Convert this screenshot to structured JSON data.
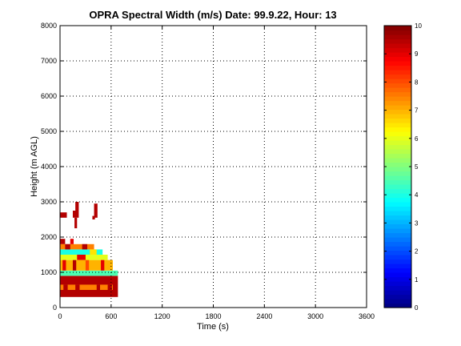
{
  "chart_data": {
    "type": "heatmap",
    "title": "OPRA Spectral Width (m/s)  Date: 99.9.22, Hour: 13",
    "xlabel": "Time (s)",
    "ylabel": "Height (m AGL)",
    "xlim": [
      0,
      3600
    ],
    "ylim": [
      0,
      8000
    ],
    "xticks": [
      0,
      600,
      1200,
      1800,
      2400,
      3000,
      3600
    ],
    "xtick_labels": [
      "0",
      "600",
      "1200",
      "1800",
      "2400",
      "3000",
      "3600"
    ],
    "yticks": [
      0,
      1000,
      2000,
      3000,
      4000,
      5000,
      6000,
      7000,
      8000
    ],
    "ytick_labels": [
      "0",
      "1000",
      "2000",
      "3000",
      "4000",
      "5000",
      "6000",
      "7000",
      "8000"
    ],
    "grid": true,
    "grid_style": "dotted",
    "colorbar": {
      "colormap": "jet",
      "range": [
        0,
        10
      ],
      "ticks": [
        0,
        1,
        2,
        3,
        4,
        5,
        6,
        7,
        8,
        9,
        10
      ],
      "tick_labels": [
        "0",
        "1",
        "2",
        "3",
        "4",
        "5",
        "6",
        "7",
        "8",
        "9",
        "10"
      ],
      "position": "right"
    },
    "cells": [
      {
        "t0": 0,
        "t1": 680,
        "h0": 300,
        "h1": 900,
        "value": 9.5
      },
      {
        "t0": 0,
        "t1": 620,
        "h0": 500,
        "h1": 650,
        "value": 7.5
      },
      {
        "t0": 40,
        "t1": 90,
        "h0": 500,
        "h1": 650,
        "value": 9.5
      },
      {
        "t0": 180,
        "t1": 230,
        "h0": 500,
        "h1": 650,
        "value": 9.5
      },
      {
        "t0": 430,
        "t1": 470,
        "h0": 500,
        "h1": 650,
        "value": 9.5
      },
      {
        "t0": 560,
        "t1": 610,
        "h0": 500,
        "h1": 650,
        "value": 9.5
      },
      {
        "t0": 0,
        "t1": 680,
        "h0": 900,
        "h1": 1050,
        "value": 4.5
      },
      {
        "t0": 0,
        "t1": 620,
        "h0": 1050,
        "h1": 1350,
        "value": 7.0
      },
      {
        "t0": 30,
        "t1": 70,
        "h0": 1050,
        "h1": 1350,
        "value": 9.0
      },
      {
        "t0": 150,
        "t1": 190,
        "h0": 1050,
        "h1": 1350,
        "value": 9.5
      },
      {
        "t0": 300,
        "t1": 340,
        "h0": 1050,
        "h1": 1350,
        "value": 8.0
      },
      {
        "t0": 480,
        "t1": 520,
        "h0": 1050,
        "h1": 1350,
        "value": 9.0
      },
      {
        "t0": 0,
        "t1": 560,
        "h0": 1350,
        "h1": 1500,
        "value": 6.0
      },
      {
        "t0": 200,
        "t1": 300,
        "h0": 1350,
        "h1": 1500,
        "value": 9.0
      },
      {
        "t0": 0,
        "t1": 500,
        "h0": 1500,
        "h1": 1650,
        "value": 4.0
      },
      {
        "t0": 350,
        "t1": 430,
        "h0": 1500,
        "h1": 1650,
        "value": 6.5
      },
      {
        "t0": 0,
        "t1": 400,
        "h0": 1650,
        "h1": 1800,
        "value": 7.5
      },
      {
        "t0": 60,
        "t1": 120,
        "h0": 1650,
        "h1": 1800,
        "value": 9.5
      },
      {
        "t0": 260,
        "t1": 320,
        "h0": 1650,
        "h1": 1800,
        "value": 9.5
      },
      {
        "t0": 0,
        "t1": 60,
        "h0": 1800,
        "h1": 1950,
        "value": 9.5
      },
      {
        "t0": 120,
        "t1": 160,
        "h0": 1800,
        "h1": 1950,
        "value": 9.0
      },
      {
        "t0": 0,
        "t1": 80,
        "h0": 2550,
        "h1": 2700,
        "value": 9.5
      },
      {
        "t0": 150,
        "t1": 220,
        "h0": 2550,
        "h1": 2750,
        "value": 9.5
      },
      {
        "t0": 180,
        "t1": 220,
        "h0": 2750,
        "h1": 3000,
        "value": 9.5
      },
      {
        "t0": 170,
        "t1": 200,
        "h0": 2250,
        "h1": 2550,
        "value": 9.5
      },
      {
        "t0": 400,
        "t1": 440,
        "h0": 2550,
        "h1": 2950,
        "value": 9.5
      },
      {
        "t0": 380,
        "t1": 410,
        "h0": 2500,
        "h1": 2600,
        "value": 9.5
      }
    ]
  }
}
